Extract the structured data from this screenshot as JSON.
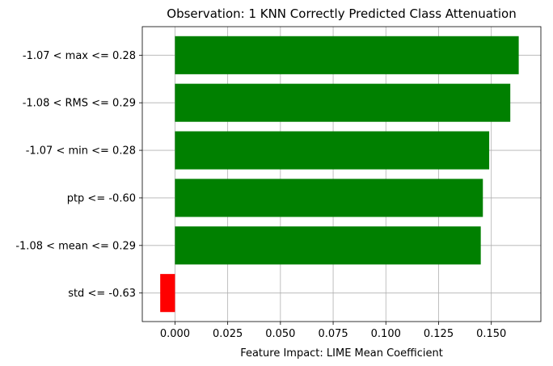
{
  "chart_data": {
    "type": "bar",
    "orientation": "horizontal",
    "title": "Observation: 1 KNN Correctly Predicted Class Attenuation",
    "xlabel": "Feature Impact: LIME Mean Coefficient",
    "ylabel": "",
    "categories": [
      "-1.07 < max <= 0.28",
      "-1.08 < RMS <= 0.29",
      "-1.07 < min <= 0.28",
      "ptp <= -0.60",
      "-1.08 < mean <= 0.29",
      "std <= -0.63"
    ],
    "values": [
      0.163,
      0.159,
      0.149,
      0.146,
      0.145,
      -0.007
    ],
    "xlim": [
      -0.0155,
      0.1735
    ],
    "xticks": [
      "0.000",
      "0.025",
      "0.050",
      "0.075",
      "0.100",
      "0.125",
      "0.150"
    ],
    "xtick_values": [
      0,
      0.025,
      0.05,
      0.075,
      0.1,
      0.125,
      0.15
    ],
    "grid": true,
    "colors": {
      "positive": "#008000",
      "negative": "#ff0000",
      "grid": "#b0b0b0",
      "axis": "#000000"
    }
  }
}
